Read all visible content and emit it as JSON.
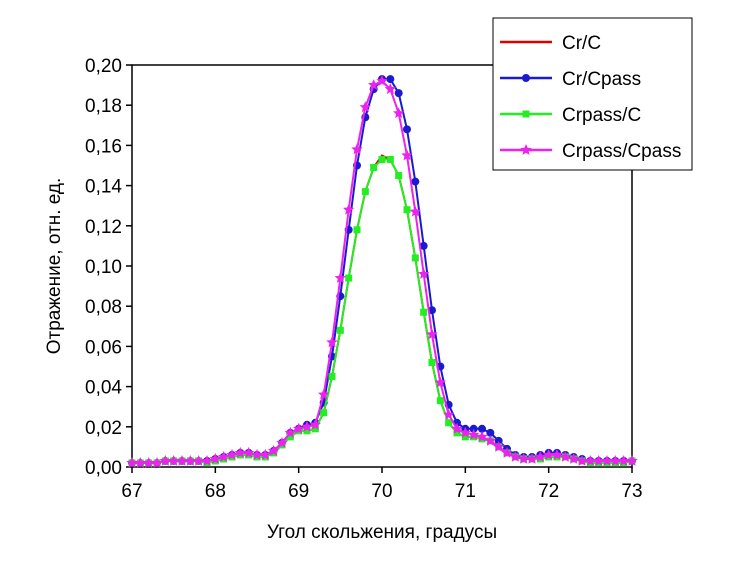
{
  "chart_data": {
    "type": "line",
    "xlabel": "Угол скольжения, градусы",
    "ylabel": "Отражение, отн. ед.",
    "x": [
      67,
      67.1,
      67.2,
      67.3,
      67.4,
      67.5,
      67.6,
      67.7,
      67.8,
      67.9,
      68,
      68.1,
      68.2,
      68.3,
      68.4,
      68.5,
      68.6,
      68.7,
      68.8,
      68.9,
      69,
      69.1,
      69.2,
      69.3,
      69.4,
      69.5,
      69.6,
      69.7,
      69.8,
      69.9,
      70,
      70.1,
      70.2,
      70.3,
      70.4,
      70.5,
      70.6,
      70.7,
      70.8,
      70.9,
      71,
      71.1,
      71.2,
      71.3,
      71.4,
      71.5,
      71.6,
      71.7,
      71.8,
      71.9,
      72,
      72.1,
      72.2,
      72.3,
      72.4,
      72.5,
      72.6,
      72.7,
      72.8,
      72.9,
      73
    ],
    "series": [
      {
        "name": "Cr/C",
        "color": "#e00000",
        "marker": "none",
        "values": [
          0.002,
          0.002,
          0.002,
          0.002,
          0.003,
          0.003,
          0.003,
          0.003,
          0.003,
          0.002,
          0.003,
          0.004,
          0.005,
          0.006,
          0.006,
          0.005,
          0.005,
          0.007,
          0.011,
          0.015,
          0.018,
          0.018,
          0.019,
          0.027,
          0.045,
          0.068,
          0.094,
          0.118,
          0.137,
          0.149,
          0.155,
          0.153,
          0.145,
          0.128,
          0.104,
          0.077,
          0.052,
          0.033,
          0.022,
          0.017,
          0.015,
          0.015,
          0.014,
          0.013,
          0.01,
          0.007,
          0.005,
          0.004,
          0.004,
          0.004,
          0.005,
          0.005,
          0.005,
          0.004,
          0.003,
          0.002,
          0.002,
          0.002,
          0.002,
          0.002,
          0.003
        ]
      },
      {
        "name": "Cr/Cpass",
        "color": "#1a1ad0",
        "marker": "circle",
        "values": [
          0.002,
          0.002,
          0.002,
          0.002,
          0.003,
          0.003,
          0.003,
          0.003,
          0.003,
          0.003,
          0.004,
          0.005,
          0.006,
          0.007,
          0.007,
          0.006,
          0.006,
          0.008,
          0.012,
          0.017,
          0.019,
          0.021,
          0.022,
          0.032,
          0.055,
          0.085,
          0.118,
          0.15,
          0.174,
          0.188,
          0.193,
          0.193,
          0.186,
          0.168,
          0.142,
          0.11,
          0.078,
          0.05,
          0.031,
          0.022,
          0.019,
          0.019,
          0.019,
          0.017,
          0.013,
          0.009,
          0.006,
          0.005,
          0.005,
          0.006,
          0.007,
          0.007,
          0.006,
          0.005,
          0.004,
          0.003,
          0.003,
          0.003,
          0.003,
          0.003,
          0.003
        ]
      },
      {
        "name": "Crpass/C",
        "color": "#22ee22",
        "marker": "square",
        "values": [
          0.002,
          0.002,
          0.002,
          0.002,
          0.003,
          0.003,
          0.003,
          0.003,
          0.003,
          0.002,
          0.003,
          0.004,
          0.005,
          0.006,
          0.006,
          0.005,
          0.005,
          0.007,
          0.011,
          0.015,
          0.018,
          0.018,
          0.019,
          0.027,
          0.045,
          0.068,
          0.094,
          0.118,
          0.137,
          0.149,
          0.153,
          0.153,
          0.145,
          0.128,
          0.104,
          0.077,
          0.052,
          0.033,
          0.022,
          0.017,
          0.015,
          0.015,
          0.014,
          0.013,
          0.01,
          0.007,
          0.005,
          0.004,
          0.004,
          0.004,
          0.005,
          0.005,
          0.005,
          0.004,
          0.003,
          0.002,
          0.002,
          0.002,
          0.002,
          0.002,
          0.003
        ]
      },
      {
        "name": "Crpass/Cpass",
        "color": "#ee22ee",
        "marker": "star",
        "values": [
          0.002,
          0.002,
          0.002,
          0.002,
          0.003,
          0.003,
          0.003,
          0.003,
          0.003,
          0.003,
          0.004,
          0.005,
          0.006,
          0.007,
          0.007,
          0.006,
          0.006,
          0.008,
          0.012,
          0.017,
          0.019,
          0.02,
          0.021,
          0.036,
          0.062,
          0.094,
          0.128,
          0.158,
          0.179,
          0.19,
          0.192,
          0.188,
          0.176,
          0.155,
          0.127,
          0.096,
          0.066,
          0.042,
          0.026,
          0.019,
          0.017,
          0.016,
          0.015,
          0.013,
          0.01,
          0.007,
          0.005,
          0.004,
          0.004,
          0.005,
          0.006,
          0.006,
          0.005,
          0.004,
          0.003,
          0.003,
          0.003,
          0.003,
          0.003,
          0.003,
          0.003
        ]
      }
    ],
    "xlim": [
      67,
      73
    ],
    "xticks": [
      67,
      68,
      69,
      70,
      71,
      72,
      73
    ],
    "ylim": [
      0,
      0.2
    ],
    "yticks": [
      {
        "value": 0,
        "label": "0,00"
      },
      {
        "value": 0.02,
        "label": "0,02"
      },
      {
        "value": 0.04,
        "label": "0,04"
      },
      {
        "value": 0.06,
        "label": "0,06"
      },
      {
        "value": 0.08,
        "label": "0,08"
      },
      {
        "value": 0.1,
        "label": "0,10"
      },
      {
        "value": 0.12,
        "label": "0,12"
      },
      {
        "value": 0.14,
        "label": "0,14"
      },
      {
        "value": 0.16,
        "label": "0,16"
      },
      {
        "value": 0.18,
        "label": "0,18"
      },
      {
        "value": 0.2,
        "label": "0,20"
      }
    ],
    "legend": "upper right"
  }
}
